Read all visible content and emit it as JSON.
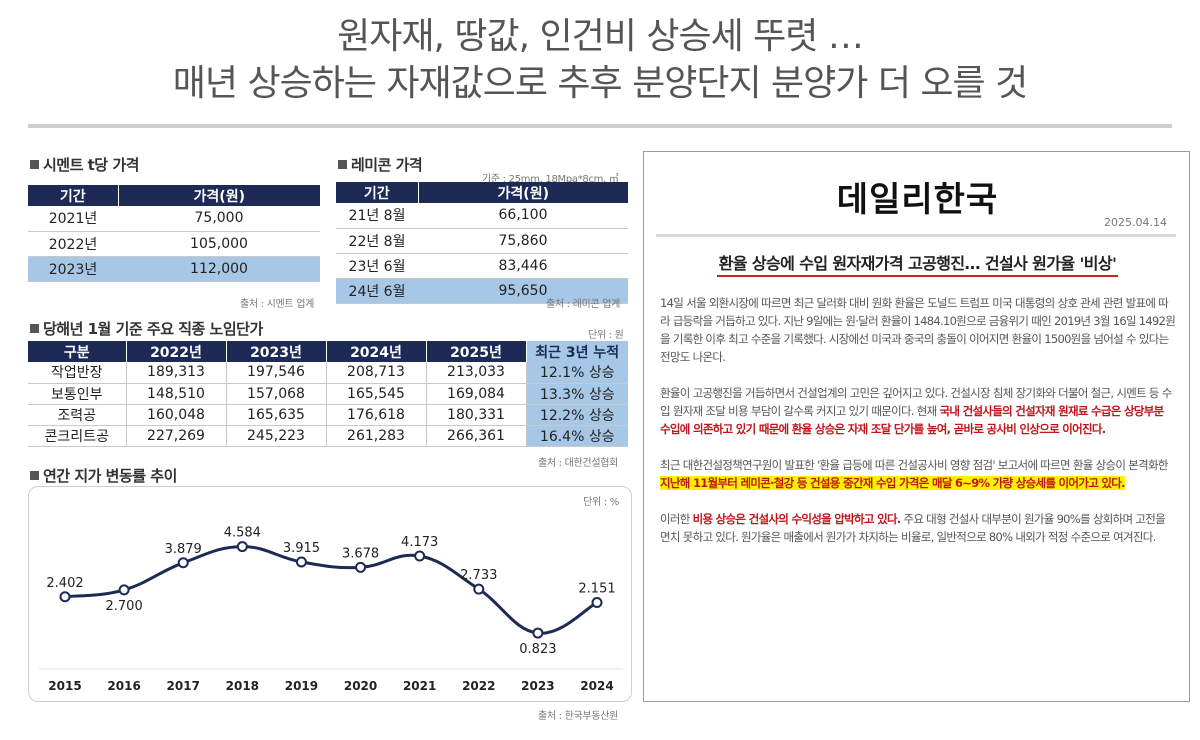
{
  "headline": {
    "line1": "원자재, 땅값, 인건비 상승세 뚜렷 …",
    "line2": "매년 상승하는 자재값으로 추후 분양단지 분양가 더 오를 것"
  },
  "cement": {
    "title": "시멘트 t당 가격",
    "headers": [
      "기간",
      "가격(원)"
    ],
    "rows": [
      [
        "2021년",
        "75,000"
      ],
      [
        "2022년",
        "105,000"
      ],
      [
        "2023년",
        "112,000"
      ]
    ],
    "source": "출처 : 시멘트 업계"
  },
  "remicon": {
    "title": "레미콘 가격",
    "note": "기준 : 25mm, 18Mpa*8cm, ㎥",
    "headers": [
      "기간",
      "가격(원)"
    ],
    "rows": [
      [
        "21년 8월",
        "66,100"
      ],
      [
        "22년 8월",
        "75,860"
      ],
      [
        "23년 6월",
        "83,446"
      ],
      [
        "24년 6월",
        "95,650"
      ]
    ],
    "source": "출처 : 레미콘 업계"
  },
  "wage": {
    "title": "당해년 1월 기준 주요 직종 노임단가",
    "unit": "단위 : 원",
    "headers": [
      "구분",
      "2022년",
      "2023년",
      "2024년",
      "2025년",
      "최근 3년 누적"
    ],
    "rows": [
      [
        "작업반장",
        "189,313",
        "197,546",
        "208,713",
        "213,033",
        "12.1% 상승"
      ],
      [
        "보통인부",
        "148,510",
        "157,068",
        "165,545",
        "169,084",
        "13.3% 상승"
      ],
      [
        "조력공",
        "160,048",
        "165,635",
        "176,618",
        "180,331",
        "12.2% 상승"
      ],
      [
        "콘크리트공",
        "227,269",
        "245,223",
        "261,283",
        "266,361",
        "16.4% 상승"
      ]
    ],
    "source": "출처 : 대한건설협회"
  },
  "land": {
    "title": "연간 지가 변동률 추이",
    "unit": "단위 : %",
    "source": "출처 : 한국부동산원"
  },
  "chart_data": {
    "type": "line",
    "title": "연간 지가 변동률 추이",
    "xlabel": "",
    "ylabel": "",
    "x": [
      "2015",
      "2016",
      "2017",
      "2018",
      "2019",
      "2020",
      "2021",
      "2022",
      "2023",
      "2024"
    ],
    "values": [
      2.402,
      2.7,
      3.879,
      4.584,
      3.915,
      3.678,
      4.173,
      2.733,
      0.823,
      2.151
    ],
    "labels": [
      "2.402",
      "2.700",
      "3.879",
      "4.584",
      "3.915",
      "3.678",
      "4.173",
      "2.733",
      "0.823",
      "2.151"
    ],
    "ylim": [
      0,
      5
    ],
    "grid": false,
    "line_color": "#1c2a55"
  },
  "news": {
    "brand": "데일리한국",
    "date": "2025.04.14",
    "title": "환율 상승에 수입 원자재가격 고공행진… 건설사 원가율 '비상'",
    "p1": "14일 서울 외환시장에 따르면 최근 달러화 대비 원화 환율은 도널드 트럼프 미국 대통령의 상호 관세 관련 발표에 따라 급등락을 거듭하고 있다. 지난 9일에는 원·달러 환율이 1484.10원으로 금융위기 때인 2019년 3월 16일 1492원을 기록한 이후 최고 수준을 기록했다. 시장에선 미국과 중국의 충돌이 이어지면 환율이 1500원을 넘어설 수 있다는 전망도 나온다.",
    "p2a": "환율이 고공행진을 거듭하면서 건설업계의 고민은 깊어지고 있다. 건설시장 침체 장기화와 더불어 철근, 시멘트 등 수입 원자재 조달 비용 부담이 갈수록 커지고 있기 때문이다. 현재 ",
    "p2b": "국내 건설사들의 건설자재 원재료 수급은 상당부분 수입에 의존하고 있기 때문에 환율 상승은 자재 조달 단가를 높여, 곧바로 공사비 인상으로 이어진다.",
    "p3a": "최근 대한건설정책연구원이 발표한 '환율 급등에 따른 건설공사비 영향 점검' 보고서에 따르면 환율 상승이 본격화한 ",
    "p3b": "지난해 11월부터 레미콘·철강 등 건설용 중간재 수입 가격은 매달 6~9% 가량 상승세를 이어가고 있다.",
    "p4a": "이러한 ",
    "p4b": "비용 상승은 건설사의 수익성을 압박하고 있다.",
    "p4c": " 주요 대형 건설사 대부분이 원가율 90%를 상회하며 고전을 면치 못하고 있다. 원가율은 매출에서 원가가 차지하는 비율로, 일반적으로 80% 내외가 적정 수준으로 여겨진다."
  }
}
